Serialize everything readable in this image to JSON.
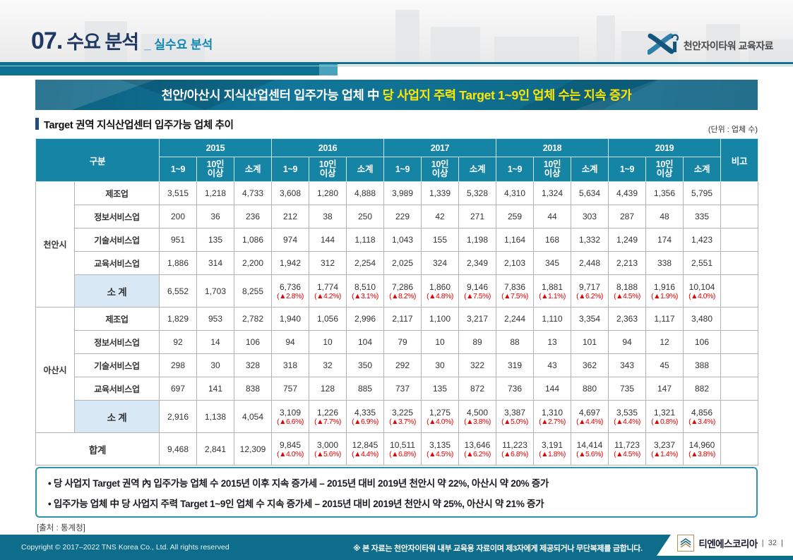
{
  "header": {
    "section_number": "07.",
    "title": "수요 분석",
    "subtitle": "_ 실수요 분석",
    "logo_label": "천안자이타워 교육자료"
  },
  "banner": {
    "text_white": "천안/아산시 지식산업센터 입주가능 업체 中 ",
    "text_yellow": "당 사업지 주력 Target 1~9인 업체 수는 지속 증가"
  },
  "section": {
    "title": "Target 권역 지식산업센터 입주가능 업체 추이",
    "unit": "(단위 : 업체 수)"
  },
  "table": {
    "corner_header": "구분",
    "remark_header": "비고",
    "years": [
      "2015",
      "2016",
      "2017",
      "2018",
      "2019"
    ],
    "sub_headers": [
      "1~9",
      "10인\n이상",
      "소계"
    ],
    "groups": [
      {
        "name": "천안시",
        "rows": [
          {
            "label": "제조업",
            "values": [
              "3,515",
              "1,218",
              "4,733",
              "3,608",
              "1,280",
              "4,888",
              "3,989",
              "1,339",
              "5,328",
              "4,310",
              "1,324",
              "5,634",
              "4,439",
              "1,356",
              "5,795"
            ]
          },
          {
            "label": "정보서비스업",
            "values": [
              "200",
              "36",
              "236",
              "212",
              "38",
              "250",
              "229",
              "42",
              "271",
              "259",
              "44",
              "303",
              "287",
              "48",
              "335"
            ]
          },
          {
            "label": "기술서비스업",
            "values": [
              "951",
              "135",
              "1,086",
              "974",
              "144",
              "1,118",
              "1,043",
              "155",
              "1,198",
              "1,164",
              "168",
              "1,332",
              "1,249",
              "174",
              "1,423"
            ]
          },
          {
            "label": "교육서비스업",
            "values": [
              "1,886",
              "314",
              "2,200",
              "1,942",
              "312",
              "2,254",
              "2,025",
              "324",
              "2,349",
              "2,103",
              "345",
              "2,448",
              "2,213",
              "338",
              "2,551"
            ]
          }
        ],
        "subtotal": {
          "label": "소 계",
          "values": [
            "6,552",
            "1,703",
            "8,255",
            "6,736",
            "1,774",
            "8,510",
            "7,286",
            "1,860",
            "9,146",
            "7,836",
            "1,881",
            "9,717",
            "8,188",
            "1,916",
            "10,104"
          ],
          "pcts": [
            "",
            "",
            "",
            "(▲2.8%)",
            "(▲4.2%)",
            "(▲3.1%)",
            "(▲8.2%)",
            "(▲4.8%)",
            "(▲7.5%)",
            "(▲7.5%)",
            "(▲1.1%)",
            "(▲6.2%)",
            "(▲4.5%)",
            "(▲1.9%)",
            "(▲4.0%)"
          ]
        }
      },
      {
        "name": "아산시",
        "rows": [
          {
            "label": "제조업",
            "values": [
              "1,829",
              "953",
              "2,782",
              "1,940",
              "1,056",
              "2,996",
              "2,117",
              "1,100",
              "3,217",
              "2,244",
              "1,110",
              "3,354",
              "2,363",
              "1,117",
              "3,480"
            ]
          },
          {
            "label": "정보서비스업",
            "values": [
              "92",
              "14",
              "106",
              "94",
              "10",
              "104",
              "79",
              "10",
              "89",
              "88",
              "13",
              "101",
              "94",
              "12",
              "106"
            ]
          },
          {
            "label": "기술서비스업",
            "values": [
              "298",
              "30",
              "328",
              "318",
              "32",
              "350",
              "292",
              "30",
              "322",
              "319",
              "43",
              "362",
              "343",
              "45",
              "388"
            ]
          },
          {
            "label": "교육서비스업",
            "values": [
              "697",
              "141",
              "838",
              "757",
              "128",
              "885",
              "737",
              "135",
              "872",
              "736",
              "144",
              "880",
              "735",
              "147",
              "882"
            ]
          }
        ],
        "subtotal": {
          "label": "소 계",
          "values": [
            "2,916",
            "1,138",
            "4,054",
            "3,109",
            "1,226",
            "4,335",
            "3,225",
            "1,275",
            "4,500",
            "3,387",
            "1,310",
            "4,697",
            "3,535",
            "1,321",
            "4,856"
          ],
          "pcts": [
            "",
            "",
            "",
            "(▲6.6%)",
            "(▲7.7%)",
            "(▲6.9%)",
            "(▲3.7%)",
            "(▲4.0%)",
            "(▲3.8%)",
            "(▲5.0%)",
            "(▲2.7%)",
            "(▲4.4%)",
            "(▲4.4%)",
            "(▲0.8%)",
            "(▲3.4%)"
          ]
        }
      }
    ],
    "total": {
      "label": "합계",
      "values": [
        "9,468",
        "2,841",
        "12,309",
        "9,845",
        "3,000",
        "12,845",
        "10,511",
        "3,135",
        "13,646",
        "11,223",
        "3,191",
        "14,414",
        "11,723",
        "3,237",
        "14,960"
      ],
      "pcts": [
        "",
        "",
        "",
        "(▲4.0%)",
        "(▲5.6%)",
        "(▲4.4%)",
        "(▲6.8%)",
        "(▲4.5%)",
        "(▲6.2%)",
        "(▲6.8%)",
        "(▲1.8%)",
        "(▲5.6%)",
        "(▲4.5%)",
        "(▲1.4%)",
        "(▲3.8%)"
      ]
    }
  },
  "notes": [
    "• 당 사업지 Target 권역 內 입주가능 업체 수 2015년 이후 지속 증가세 – 2015년 대비 2019년 천안시 약 22%, 아산시 약 20% 증가",
    "• 입주가능 업체 中 당 사업지 주력 Target 1~9인 업체 수 지속 증가세 – 2015년 대비 2019년 천안시 약 25%, 아산시 약 21% 증가"
  ],
  "source": "[출처 : 통계청]",
  "footer": {
    "copyright": "Copyright © 2017–2022 TNS Korea Co., Ltd.  All rights reserved",
    "notice": "※ 본 자료는 천안자이타워 내부 교육용 자료이며 제3자에게 제공되거나 무단복제를 금합니다.",
    "company": "티엔에스코리아",
    "divider": "|",
    "page": "32"
  },
  "colors": {
    "header_teal": "#1584a5",
    "banner_teal": "#0f6d8e",
    "band_teal": "#0e7191",
    "navy": "#1f3864",
    "accent_cyan": "#0e87b5",
    "accent_yellow": "#ffe800",
    "subtotal_bg": "#d9e8f5",
    "total_bg": "#fbe4d5",
    "rise_red": "#e60000",
    "footer_teal": "#0d6d8a",
    "logo_gold": "#b5914e"
  }
}
